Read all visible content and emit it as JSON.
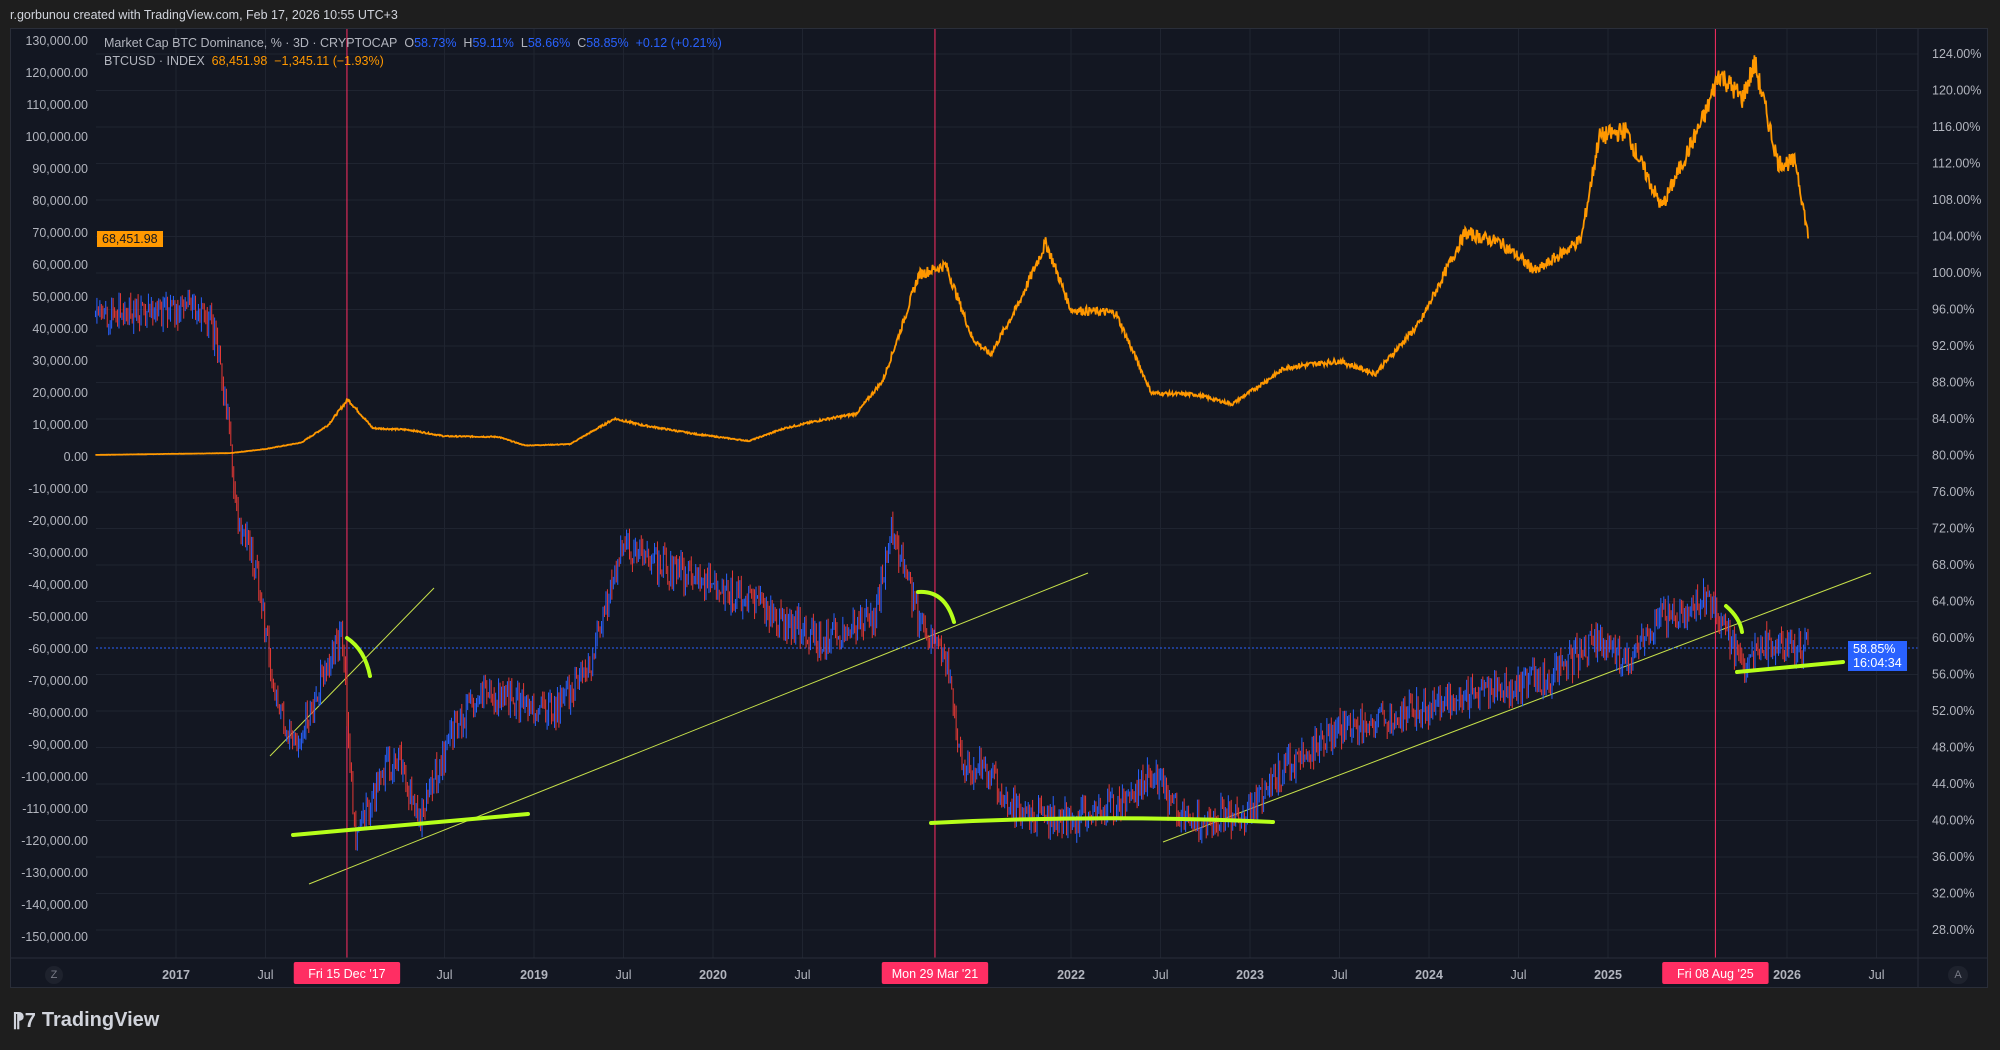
{
  "header": {
    "credit": "r.gorbunou created with TradingView.com, Feb 17, 2026 10:55 UTC+3"
  },
  "legend": {
    "series1": {
      "name": "Market Cap BTC Dominance, % · 3D · CRYPTOCAP",
      "o_label": "O",
      "o": "58.73%",
      "h_label": "H",
      "h": "59.11%",
      "l_label": "L",
      "l": "58.66%",
      "c_label": "C",
      "c": "58.85%",
      "change": "+0.12 (+0.21%)"
    },
    "series2": {
      "name": "BTCUSD · INDEX",
      "price": "68,451.98",
      "change": "−1,345.11 (−1.93%)"
    }
  },
  "price_badges": {
    "left": "68,451.98",
    "right_value": "58.85%",
    "right_timer": "16:04:34"
  },
  "buttons": {
    "z": "Z",
    "a": "A"
  },
  "brand": {
    "name": "TradingView"
  },
  "colors": {
    "btc": "#ff9800",
    "dom_up": "#2962ff",
    "dom_down": "#e53935",
    "marker": "#ff2e63",
    "annotation": "#b6ff1a",
    "trend": "#c6e04a"
  },
  "chart_data": {
    "type": "line",
    "left_axis": {
      "ticks": [
        "130,000.00",
        "120,000.00",
        "110,000.00",
        "100,000.00",
        "90,000.00",
        "80,000.00",
        "70,000.00",
        "60,000.00",
        "50,000.00",
        "40,000.00",
        "30,000.00",
        "20,000.00",
        "10,000.00",
        "0.00",
        "-10,000.00",
        "-20,000.00",
        "-30,000.00",
        "-40,000.00",
        "-50,000.00",
        "-60,000.00",
        "-70,000.00",
        "-80,000.00",
        "-90,000.00",
        "-100,000.00",
        "-110,000.00",
        "-120,000.00",
        "-130,000.00",
        "-140,000.00",
        "-150,000.00"
      ],
      "range": [
        -150000,
        130000
      ]
    },
    "right_axis": {
      "ticks": [
        "124.00%",
        "120.00%",
        "116.00%",
        "112.00%",
        "108.00%",
        "104.00%",
        "100.00%",
        "96.00%",
        "92.00%",
        "88.00%",
        "84.00%",
        "80.00%",
        "76.00%",
        "72.00%",
        "68.00%",
        "64.00%",
        "60.00%",
        "56.00%",
        "52.00%",
        "48.00%",
        "44.00%",
        "40.00%",
        "36.00%",
        "32.00%",
        "28.00%"
      ],
      "range": [
        28,
        124
      ]
    },
    "x_axis": {
      "ticks": [
        {
          "t": 2017,
          "label": "2017"
        },
        {
          "t": 2017.5,
          "label": "Jul"
        },
        {
          "t": 2018.5,
          "label": "Jul"
        },
        {
          "t": 2019,
          "label": "2019"
        },
        {
          "t": 2019.5,
          "label": "Jul"
        },
        {
          "t": 2020,
          "label": "2020"
        },
        {
          "t": 2020.5,
          "label": "Jul"
        },
        {
          "t": 2022,
          "label": "2022"
        },
        {
          "t": 2022.5,
          "label": "Jul"
        },
        {
          "t": 2023,
          "label": "2023"
        },
        {
          "t": 2023.5,
          "label": "Jul"
        },
        {
          "t": 2024,
          "label": "2024"
        },
        {
          "t": 2024.5,
          "label": "Jul"
        },
        {
          "t": 2025,
          "label": "2025"
        },
        {
          "t": 2026,
          "label": "2026"
        },
        {
          "t": 2026.5,
          "label": "Jul"
        }
      ]
    },
    "markers": [
      {
        "t": 2017.955,
        "label": "Fri 15 Dec '17"
      },
      {
        "t": 2021.24,
        "label": "Mon 29 Mar '21"
      },
      {
        "t": 2025.6,
        "label": "Fri 08 Aug '25"
      }
    ],
    "series": [
      {
        "name": "BTCUSD",
        "axis": "left",
        "points": [
          [
            2016.55,
            650
          ],
          [
            2017.0,
            1000
          ],
          [
            2017.3,
            1200
          ],
          [
            2017.5,
            2500
          ],
          [
            2017.7,
            4500
          ],
          [
            2017.85,
            10000
          ],
          [
            2017.96,
            18000
          ],
          [
            2018.1,
            9000
          ],
          [
            2018.3,
            8500
          ],
          [
            2018.5,
            6500
          ],
          [
            2018.8,
            6300
          ],
          [
            2018.95,
            3600
          ],
          [
            2019.2,
            4000
          ],
          [
            2019.45,
            12000
          ],
          [
            2019.6,
            10000
          ],
          [
            2019.9,
            7200
          ],
          [
            2020.2,
            5000
          ],
          [
            2020.4,
            9000
          ],
          [
            2020.6,
            11500
          ],
          [
            2020.8,
            13500
          ],
          [
            2020.95,
            24000
          ],
          [
            2021.05,
            40000
          ],
          [
            2021.15,
            57000
          ],
          [
            2021.3,
            60000
          ],
          [
            2021.45,
            37000
          ],
          [
            2021.55,
            32000
          ],
          [
            2021.7,
            47000
          ],
          [
            2021.86,
            67000
          ],
          [
            2022.0,
            46000
          ],
          [
            2022.25,
            45000
          ],
          [
            2022.45,
            20000
          ],
          [
            2022.7,
            19500
          ],
          [
            2022.9,
            16500
          ],
          [
            2023.2,
            28000
          ],
          [
            2023.5,
            30000
          ],
          [
            2023.7,
            26000
          ],
          [
            2023.95,
            42000
          ],
          [
            2024.2,
            70000
          ],
          [
            2024.4,
            67000
          ],
          [
            2024.6,
            58000
          ],
          [
            2024.85,
            68000
          ],
          [
            2024.95,
            100000
          ],
          [
            2025.1,
            102000
          ],
          [
            2025.3,
            78000
          ],
          [
            2025.45,
            96000
          ],
          [
            2025.55,
            108000
          ],
          [
            2025.62,
            120000
          ],
          [
            2025.75,
            112000
          ],
          [
            2025.82,
            123000
          ],
          [
            2025.95,
            92000
          ],
          [
            2026.05,
            92000
          ],
          [
            2026.1,
            75000
          ],
          [
            2026.12,
            68451.98
          ]
        ]
      },
      {
        "name": "BTC Dominance",
        "axis": "right",
        "points": [
          [
            2016.55,
            95.5
          ],
          [
            2016.9,
            96
          ],
          [
            2017.1,
            96.2
          ],
          [
            2017.2,
            94
          ],
          [
            2017.28,
            86
          ],
          [
            2017.35,
            72
          ],
          [
            2017.45,
            68
          ],
          [
            2017.55,
            54
          ],
          [
            2017.65,
            48
          ],
          [
            2017.75,
            52
          ],
          [
            2017.85,
            58
          ],
          [
            2017.93,
            60
          ],
          [
            2018.0,
            38
          ],
          [
            2018.15,
            45
          ],
          [
            2018.25,
            47
          ],
          [
            2018.35,
            40
          ],
          [
            2018.55,
            50
          ],
          [
            2018.75,
            54
          ],
          [
            2018.9,
            53
          ],
          [
            2019.1,
            52
          ],
          [
            2019.3,
            56
          ],
          [
            2019.5,
            70
          ],
          [
            2019.7,
            68
          ],
          [
            2020.0,
            66
          ],
          [
            2020.2,
            64
          ],
          [
            2020.4,
            62
          ],
          [
            2020.6,
            60
          ],
          [
            2020.9,
            62
          ],
          [
            2021.0,
            72
          ],
          [
            2021.15,
            62
          ],
          [
            2021.3,
            58
          ],
          [
            2021.4,
            45
          ],
          [
            2021.5,
            46
          ],
          [
            2021.7,
            41
          ],
          [
            2022.0,
            40
          ],
          [
            2022.3,
            42
          ],
          [
            2022.45,
            45
          ],
          [
            2022.6,
            41
          ],
          [
            2022.75,
            40
          ],
          [
            2023.0,
            41
          ],
          [
            2023.2,
            46
          ],
          [
            2023.5,
            50
          ],
          [
            2023.9,
            52
          ],
          [
            2024.3,
            54
          ],
          [
            2024.7,
            56
          ],
          [
            2024.95,
            60
          ],
          [
            2025.1,
            57
          ],
          [
            2025.3,
            62
          ],
          [
            2025.55,
            64
          ],
          [
            2025.65,
            61
          ],
          [
            2025.75,
            57
          ],
          [
            2025.85,
            59.5
          ],
          [
            2026.0,
            59
          ],
          [
            2026.12,
            58.85
          ]
        ]
      }
    ]
  }
}
